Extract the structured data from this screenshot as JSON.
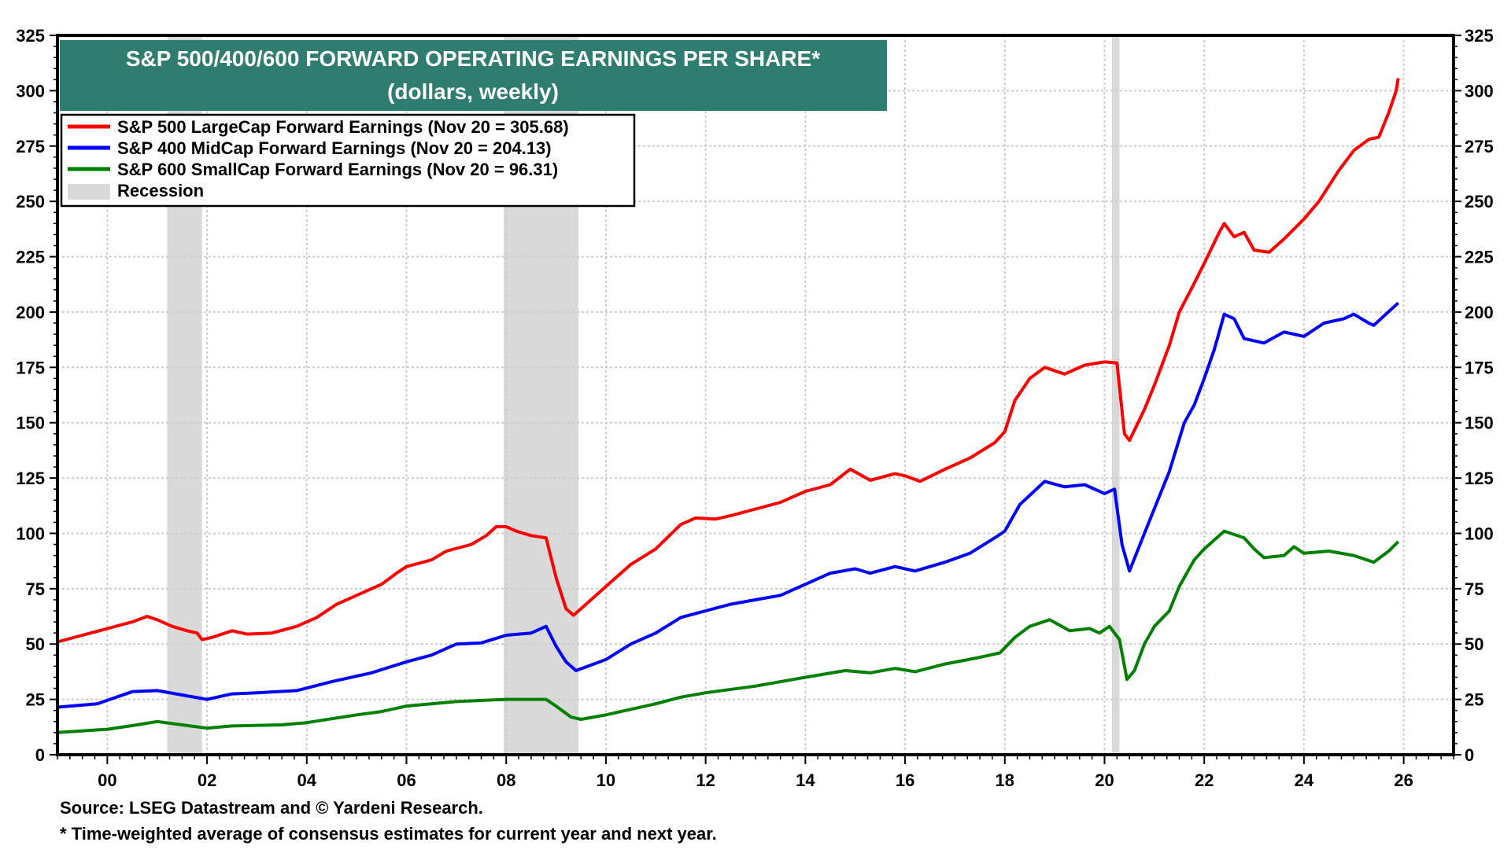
{
  "chart_data": {
    "type": "line",
    "title": "S&P 500/400/600 FORWARD OPERATING EARNINGS PER SHARE*",
    "subtitle": "(dollars, weekly)",
    "xlabel": "",
    "ylabel": "",
    "xlim": [
      1999.0,
      2027.0
    ],
    "ylim": [
      0,
      325
    ],
    "x_ticks": [
      2000,
      2002,
      2004,
      2006,
      2008,
      2010,
      2012,
      2014,
      2016,
      2018,
      2020,
      2022,
      2024,
      2026
    ],
    "x_tick_labels": [
      "00",
      "02",
      "04",
      "06",
      "08",
      "10",
      "12",
      "14",
      "16",
      "18",
      "20",
      "22",
      "24",
      "26"
    ],
    "y_ticks": [
      0,
      25,
      50,
      75,
      100,
      125,
      150,
      175,
      200,
      225,
      250,
      275,
      300,
      325
    ],
    "y_tick_labels": [
      "0",
      "25",
      "50",
      "75",
      "100",
      "125",
      "150",
      "175",
      "200",
      "225",
      "250",
      "275",
      "300",
      "325"
    ],
    "grid": true,
    "legend_placement": "top-left",
    "recession_label": "Recession",
    "recession_color": "#d9d9d9",
    "title_bg_color": "#2e7d70",
    "recessions": [
      [
        2001.2,
        2001.9
      ],
      [
        2007.95,
        2009.45
      ],
      [
        2020.15,
        2020.3
      ]
    ],
    "series": [
      {
        "name": "S&P 500 LargeCap Forward Earnings (Nov 20 = 305.68)",
        "color": "#ff0000",
        "points": [
          [
            1999.0,
            51
          ],
          [
            1999.5,
            54
          ],
          [
            2000.0,
            57
          ],
          [
            2000.5,
            60
          ],
          [
            2000.8,
            62.5
          ],
          [
            2001.0,
            61
          ],
          [
            2001.3,
            58
          ],
          [
            2001.6,
            56
          ],
          [
            2001.8,
            55
          ],
          [
            2001.9,
            52
          ],
          [
            2002.1,
            53
          ],
          [
            2002.5,
            56
          ],
          [
            2002.8,
            54.5
          ],
          [
            2003.3,
            55
          ],
          [
            2003.8,
            58
          ],
          [
            2004.2,
            62
          ],
          [
            2004.6,
            68
          ],
          [
            2005.0,
            72
          ],
          [
            2005.5,
            77
          ],
          [
            2005.8,
            82
          ],
          [
            2006.0,
            85
          ],
          [
            2006.5,
            88
          ],
          [
            2006.8,
            92
          ],
          [
            2007.3,
            95
          ],
          [
            2007.6,
            99
          ],
          [
            2007.8,
            103
          ],
          [
            2008.0,
            103
          ],
          [
            2008.2,
            101
          ],
          [
            2008.5,
            99
          ],
          [
            2008.8,
            98
          ],
          [
            2009.0,
            80
          ],
          [
            2009.2,
            66
          ],
          [
            2009.35,
            63
          ],
          [
            2009.6,
            68
          ],
          [
            2010.0,
            76
          ],
          [
            2010.5,
            86
          ],
          [
            2011.0,
            93
          ],
          [
            2011.5,
            104
          ],
          [
            2011.8,
            107
          ],
          [
            2012.2,
            106.5
          ],
          [
            2012.5,
            108
          ],
          [
            2013.0,
            111
          ],
          [
            2013.5,
            114
          ],
          [
            2014.0,
            119
          ],
          [
            2014.5,
            122
          ],
          [
            2014.9,
            129
          ],
          [
            2015.3,
            124
          ],
          [
            2015.8,
            127
          ],
          [
            2016.0,
            126
          ],
          [
            2016.3,
            123.5
          ],
          [
            2016.8,
            129
          ],
          [
            2017.3,
            134
          ],
          [
            2017.8,
            141
          ],
          [
            2018.0,
            146
          ],
          [
            2018.2,
            160
          ],
          [
            2018.5,
            170
          ],
          [
            2018.8,
            175
          ],
          [
            2019.2,
            172
          ],
          [
            2019.6,
            176
          ],
          [
            2020.0,
            177.5
          ],
          [
            2020.25,
            177
          ],
          [
            2020.4,
            145
          ],
          [
            2020.5,
            142
          ],
          [
            2020.8,
            156
          ],
          [
            2021.0,
            167
          ],
          [
            2021.3,
            185
          ],
          [
            2021.5,
            200
          ],
          [
            2021.8,
            213
          ],
          [
            2022.0,
            222
          ],
          [
            2022.3,
            236
          ],
          [
            2022.4,
            240
          ],
          [
            2022.6,
            234
          ],
          [
            2022.8,
            236
          ],
          [
            2023.0,
            228
          ],
          [
            2023.3,
            227
          ],
          [
            2023.6,
            233
          ],
          [
            2024.0,
            242
          ],
          [
            2024.3,
            250
          ],
          [
            2024.7,
            264
          ],
          [
            2025.0,
            273
          ],
          [
            2025.3,
            278
          ],
          [
            2025.5,
            279
          ],
          [
            2025.7,
            290
          ],
          [
            2025.85,
            300
          ],
          [
            2025.89,
            305.68
          ]
        ]
      },
      {
        "name": "S&P 400 MidCap Forward Earnings (Nov 20 = 204.13)",
        "color": "#0000ff",
        "points": [
          [
            1999.0,
            21.5
          ],
          [
            1999.8,
            23
          ],
          [
            2000.5,
            28.5
          ],
          [
            2001.0,
            29
          ],
          [
            2001.5,
            27
          ],
          [
            2002.0,
            25
          ],
          [
            2002.5,
            27.5
          ],
          [
            2003.0,
            28
          ],
          [
            2003.8,
            29
          ],
          [
            2004.5,
            33
          ],
          [
            2005.3,
            37
          ],
          [
            2006.0,
            42
          ],
          [
            2006.5,
            45
          ],
          [
            2007.0,
            50
          ],
          [
            2007.5,
            50.5
          ],
          [
            2008.0,
            54
          ],
          [
            2008.5,
            55
          ],
          [
            2008.8,
            58
          ],
          [
            2009.0,
            49
          ],
          [
            2009.2,
            42
          ],
          [
            2009.4,
            38
          ],
          [
            2010.0,
            43
          ],
          [
            2010.5,
            50
          ],
          [
            2011.0,
            55
          ],
          [
            2011.5,
            62
          ],
          [
            2012.0,
            65
          ],
          [
            2012.5,
            68
          ],
          [
            2013.0,
            70
          ],
          [
            2013.5,
            72
          ],
          [
            2014.0,
            77
          ],
          [
            2014.5,
            82
          ],
          [
            2015.0,
            84
          ],
          [
            2015.3,
            82
          ],
          [
            2015.8,
            85
          ],
          [
            2016.2,
            83
          ],
          [
            2016.8,
            87
          ],
          [
            2017.3,
            91
          ],
          [
            2017.8,
            98
          ],
          [
            2018.0,
            101
          ],
          [
            2018.3,
            113
          ],
          [
            2018.8,
            123.5
          ],
          [
            2019.2,
            121
          ],
          [
            2019.6,
            122
          ],
          [
            2020.0,
            118
          ],
          [
            2020.2,
            120
          ],
          [
            2020.35,
            95
          ],
          [
            2020.5,
            83
          ],
          [
            2020.8,
            100
          ],
          [
            2021.3,
            128
          ],
          [
            2021.6,
            150
          ],
          [
            2021.8,
            158
          ],
          [
            2022.0,
            170
          ],
          [
            2022.2,
            183
          ],
          [
            2022.4,
            199
          ],
          [
            2022.6,
            197
          ],
          [
            2022.8,
            188
          ],
          [
            2023.2,
            186
          ],
          [
            2023.6,
            191
          ],
          [
            2024.0,
            189
          ],
          [
            2024.4,
            195
          ],
          [
            2024.8,
            197
          ],
          [
            2025.0,
            199
          ],
          [
            2025.3,
            195
          ],
          [
            2025.4,
            194
          ],
          [
            2025.89,
            204.13
          ]
        ]
      },
      {
        "name": "S&P 600 SmallCap Forward Earnings (Nov 20 = 96.31)",
        "color": "#008000",
        "points": [
          [
            1999.0,
            10
          ],
          [
            2000.0,
            11.5
          ],
          [
            2000.6,
            13.5
          ],
          [
            2001.0,
            15
          ],
          [
            2001.5,
            13.5
          ],
          [
            2002.0,
            12
          ],
          [
            2002.5,
            13
          ],
          [
            2003.5,
            13.5
          ],
          [
            2004.0,
            14.5
          ],
          [
            2005.0,
            18
          ],
          [
            2005.5,
            19.5
          ],
          [
            2006.0,
            22
          ],
          [
            2007.0,
            24
          ],
          [
            2008.0,
            25
          ],
          [
            2008.8,
            25
          ],
          [
            2009.0,
            22
          ],
          [
            2009.3,
            17
          ],
          [
            2009.5,
            16
          ],
          [
            2010.0,
            18
          ],
          [
            2011.0,
            23
          ],
          [
            2011.5,
            26
          ],
          [
            2012.0,
            28
          ],
          [
            2013.0,
            31
          ],
          [
            2014.0,
            35
          ],
          [
            2014.8,
            38
          ],
          [
            2015.3,
            37
          ],
          [
            2015.8,
            39
          ],
          [
            2016.2,
            37.5
          ],
          [
            2016.8,
            41
          ],
          [
            2017.5,
            44
          ],
          [
            2017.9,
            46
          ],
          [
            2018.2,
            53
          ],
          [
            2018.5,
            58
          ],
          [
            2018.9,
            61
          ],
          [
            2019.3,
            56
          ],
          [
            2019.7,
            57
          ],
          [
            2019.9,
            55
          ],
          [
            2020.1,
            58
          ],
          [
            2020.3,
            52
          ],
          [
            2020.45,
            34
          ],
          [
            2020.6,
            38
          ],
          [
            2020.8,
            50
          ],
          [
            2021.0,
            58
          ],
          [
            2021.3,
            65
          ],
          [
            2021.5,
            76
          ],
          [
            2021.8,
            88
          ],
          [
            2022.0,
            93
          ],
          [
            2022.4,
            101
          ],
          [
            2022.8,
            98
          ],
          [
            2023.0,
            93
          ],
          [
            2023.2,
            89
          ],
          [
            2023.6,
            90
          ],
          [
            2023.8,
            94
          ],
          [
            2024.0,
            91
          ],
          [
            2024.5,
            92
          ],
          [
            2025.0,
            90
          ],
          [
            2025.4,
            87
          ],
          [
            2025.7,
            92
          ],
          [
            2025.89,
            96.31
          ]
        ]
      }
    ]
  },
  "footer": {
    "source": "Source: LSEG Datastream and © Yardeni Research.",
    "note": "* Time-weighted average of consensus estimates for current year and next year."
  }
}
